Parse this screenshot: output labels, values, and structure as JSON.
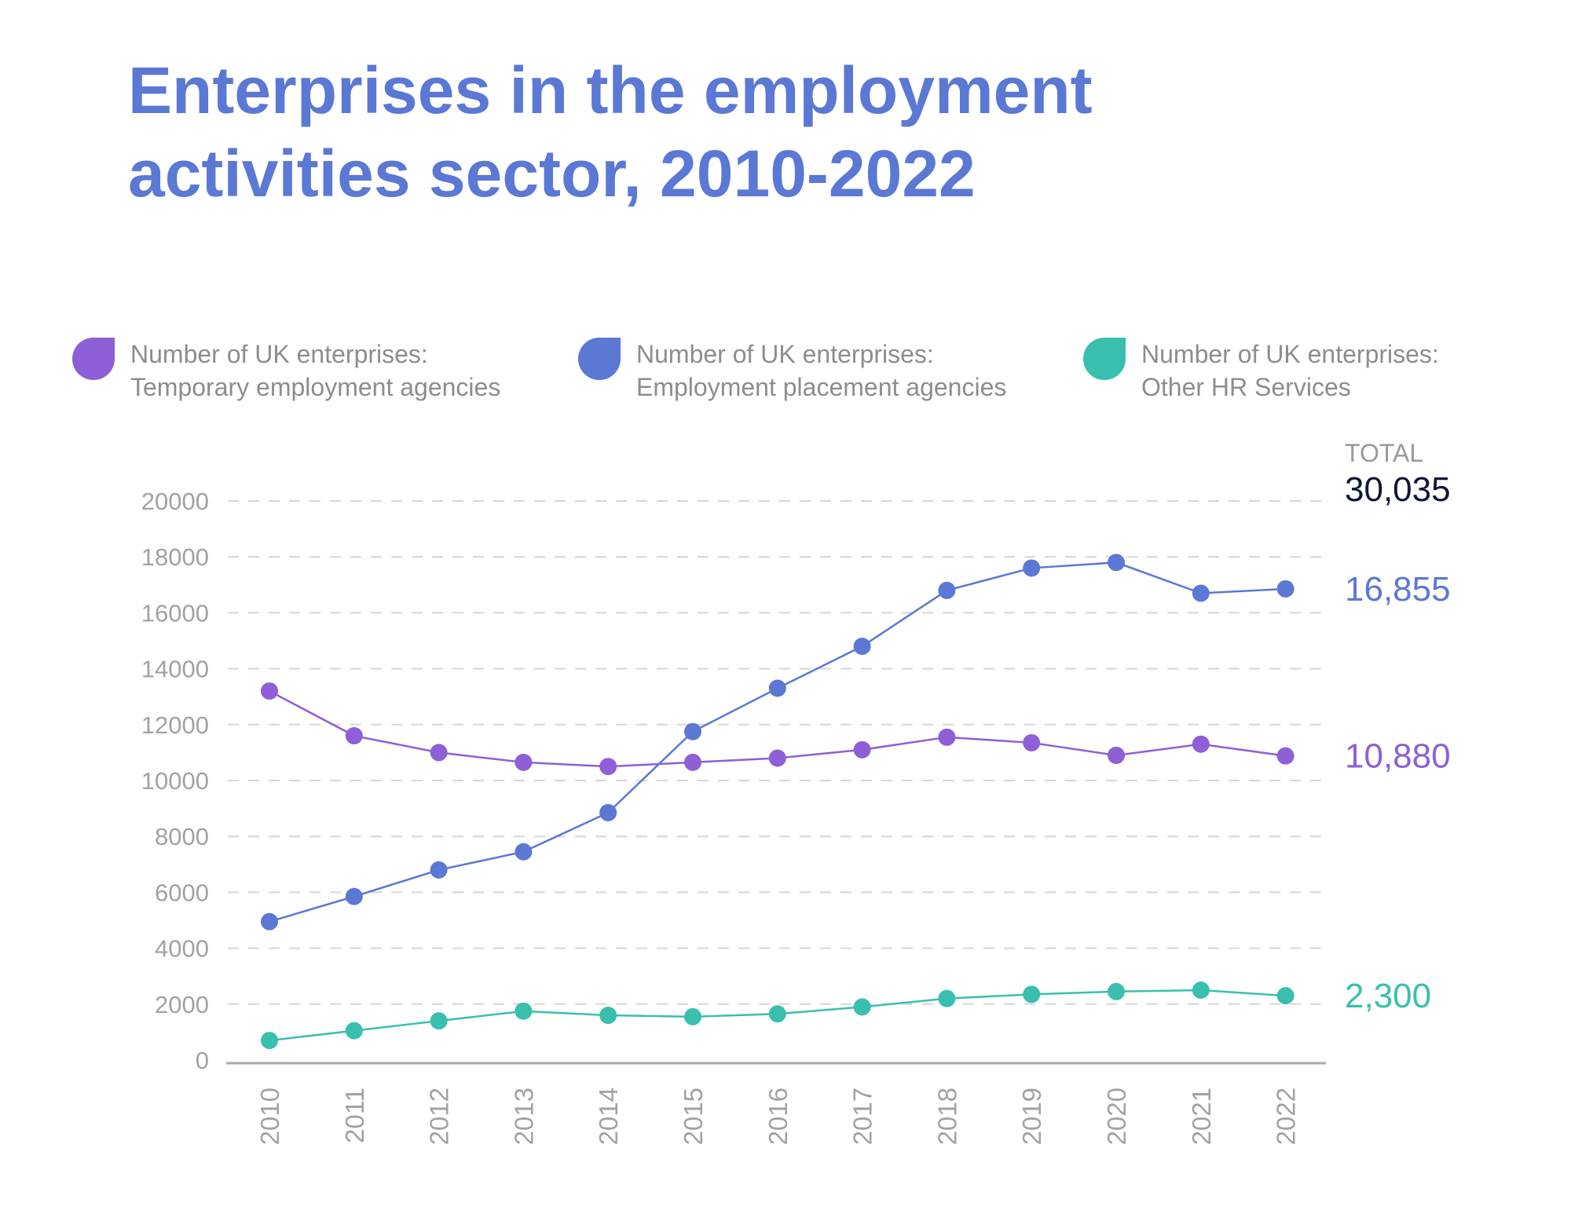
{
  "title": {
    "line1": "Enterprises in the employment",
    "line2": "activities sector, 2010-2022"
  },
  "legend": [
    {
      "line1": "Number of UK enterprises:",
      "line2": "Temporary employment agencies",
      "color": "#8e5fd6"
    },
    {
      "line1": "Number of UK enterprises:",
      "line2": "Employment placement agencies",
      "color": "#5b78d4"
    },
    {
      "line1": "Number of UK enterprises:",
      "line2": "Other HR Services",
      "color": "#3abfae"
    }
  ],
  "total": {
    "caption": "TOTAL",
    "value": "30,035"
  },
  "chart_data": {
    "type": "line",
    "title": "Enterprises in the employment activities sector, 2010-2022",
    "xlabel": "",
    "ylabel": "",
    "ylim": [
      0,
      20000
    ],
    "yticks": [
      0,
      2000,
      4000,
      6000,
      8000,
      10000,
      12000,
      14000,
      16000,
      18000,
      20000
    ],
    "grid": "horizontal dashed",
    "legend_position": "top",
    "x": [
      "2010",
      "2011",
      "2012",
      "2013",
      "2014",
      "2015",
      "2016",
      "2017",
      "2018",
      "2019",
      "2020",
      "2021",
      "2022"
    ],
    "series": [
      {
        "name": "Number of UK enterprises: Temporary employment agencies",
        "color": "#8e5fd6",
        "end_label": "10,880",
        "values": [
          13200,
          11600,
          11000,
          10650,
          10500,
          10650,
          10800,
          11100,
          11550,
          11350,
          10900,
          11300,
          10880
        ]
      },
      {
        "name": "Number of UK enterprises: Employment placement agencies",
        "color": "#5b78d4",
        "end_label": "16,855",
        "values": [
          4950,
          5850,
          6800,
          7450,
          8850,
          11750,
          13300,
          14800,
          16800,
          17600,
          17800,
          16700,
          16855
        ]
      },
      {
        "name": "Number of UK enterprises: Other HR Services",
        "color": "#3abfae",
        "end_label": "2,300",
        "values": [
          700,
          1050,
          1400,
          1750,
          1600,
          1550,
          1650,
          1900,
          2200,
          2350,
          2450,
          2500,
          2300
        ]
      }
    ]
  }
}
